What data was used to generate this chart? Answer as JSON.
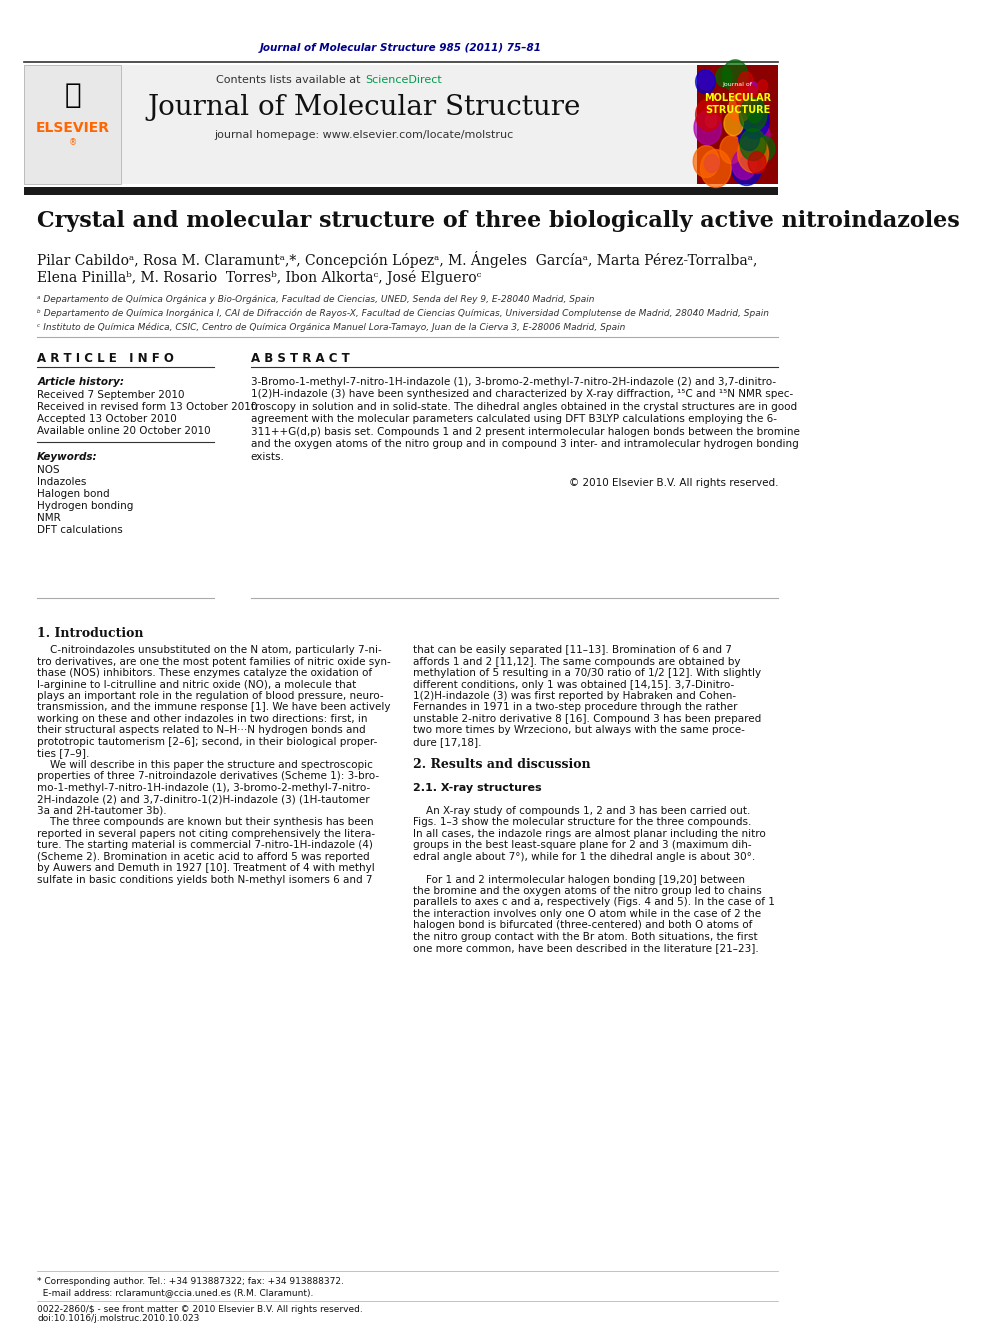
{
  "bg_color": "#ffffff",
  "top_citation": "Journal of Molecular Structure 985 (2011) 75–81",
  "top_citation_color": "#00008B",
  "contents_text": "Contents lists available at ",
  "sciencedirect_text": "ScienceDirect",
  "sciencedirect_color": "#00994C",
  "journal_title": "Journal of Molecular Structure",
  "journal_homepage": "journal homepage: www.elsevier.com/locate/molstruc",
  "thick_bar_color": "#1a1a1a",
  "article_title": "Crystal and molecular structure of three biologically active nitroindazoles",
  "authors_line1": "Pilar Cabildoᵃ, Rosa M. Claramuntᵃ,*, Concepción Lópezᵃ, M. Ángeles  Garcíaᵃ, Marta Pérez-Torralbaᵃ,",
  "authors_line2": "Elena Pinillaᵇ, M. Rosario  Torresᵇ, Ibon Alkortaᶜ, José Elgueroᶜ",
  "affil_a": "ᵃ Departamento de Química Orgánica y Bio-Orgánica, Facultad de Ciencias, UNED, Senda del Rey 9, E-28040 Madrid, Spain",
  "affil_b": "ᵇ Departamento de Química Inorgánica I, CAI de Difracción de Rayos-X, Facultad de Ciencias Químicas, Universidad Complutense de Madrid, 28040 Madrid, Spain",
  "affil_c": "ᶜ Instituto de Química Médica, CSIC, Centro de Química Orgánica Manuel Lora-Tamayo, Juan de la Cierva 3, E-28006 Madrid, Spain",
  "article_info_title": "A R T I C L E   I N F O",
  "abstract_title": "A B S T R A C T",
  "article_history_label": "Article history:",
  "received": "Received 7 September 2010",
  "received_revised": "Received in revised form 13 October 2010",
  "accepted": "Accepted 13 October 2010",
  "available": "Available online 20 October 2010",
  "keywords_label": "Keywords:",
  "keywords": [
    "NOS",
    "Indazoles",
    "Halogen bond",
    "Hydrogen bonding",
    "NMR",
    "DFT calculations"
  ],
  "abstract_text": "3-Bromo-1-methyl-7-nitro-1H-indazole (1), 3-bromo-2-methyl-7-nitro-2H-indazole (2) and 3,7-dinitro-1(2)H-indazole (3) have been synthesized and characterized by X-ray diffraction, ¹⁵C and ¹⁵N NMR spectroscopy in solution and in solid-state. The dihedral angles obtained in the crystal structures are in good agreement with the molecular parameters calculated using DFT B3LYP calculations employing the 6-311++G(d,p) basis set. Compounds 1 and 2 present intermolecular halogen bonds between the bromine and the oxygen atoms of the nitro group and in compound 3 inter- and intramolecular hydrogen bonding exists.",
  "copyright": "© 2010 Elsevier B.V. All rights reserved.",
  "intro_section": "1. Introduction",
  "intro_col1": "C-nitroindazoles unsubstituted on the N atom, particularly 7-nitro derivatives, are one the most potent families of nitric oxide synthase (NOS) inhibitors. These enzymes catalyze the oxidation of l-arginine to l-citrulline and nitric oxide (NO), a molecule that plays an important role in the regulation of blood pressure, neurotransmission, and the immune response [1]. We have been actively working on these and other indazoles in two directions: first, in their structural aspects related to N–H···N hydrogen bonds and prototropic tautomerism [2–6]; second, in their biological properties [7–9].\n\n    We will describe in this paper the structure and spectroscopic properties of three 7-nitroindazole derivatives (Scheme 1): 3-bromo-1-methyl-7-nitro-1H-indazole (1), 3-bromo-2-methyl-7-nitro-2H-indazole (2) and 3,7-dinitro-1(2)H-indazole (3) (1H-tautomer 3a and 2H-tautomer 3b).\n\n    The three compounds are known but their synthesis has been reported in several papers not citing comprehensively the literature. The starting material is commercial 7-nitro-1H-indazole (4) (Scheme 2). Bromination in acetic acid to afford 5 was reported by Auwers and Demuth in 1927 [10]. Treatment of 4 with methyl sulfate in basic conditions yields both N-methyl isomers 6 and 7",
  "intro_col2": "that can be easily separated [11–13]. Bromination of 6 and 7 affords 1 and 2 [11,12]. The same compounds are obtained by methylation of 5 resulting in a 70/30 ratio of 1/2 [12]. With slightly different conditions, only 1 was obtained [14,15]. 3,7-Dinitro-1(2)H-indazole (3) was first reported by Habraken and Cohen-Fernandes in 1971 in a two-step procedure through the rather unstable 2-nitro derivative 8 [16]. Compound 3 has been prepared two more times by Wrzeciono, but always with the same procedure [17,18].\n\n2. Results and discussion\n\n2.1. X-ray structures\n\n    An X-ray study of compounds 1, 2 and 3 has been carried out. Figs. 1–3 show the molecular structure for the three compounds. In all cases, the indazole rings are almost planar including the nitro groups in the best least-square plane for 2 and 3 (maximum dihedral angle about 7°), while for 1 the dihedral angle is about 30°.\n\n    For 1 and 2 intermolecular halogen bonding [19,20] between the bromine and the oxygen atoms of the nitro group led to chains parallels to axes c and a, respectively (Figs. 4 and 5). In the case of 1 the interaction involves only one O atom while in the case of 2 the halogen bond is bifurcated (three-centered) and both O atoms of the nitro group contact with the Br atom. Both situations, the first one more common, have been described in the literature [21–23].",
  "elsevier_color": "#FF6600",
  "header_bg": "#f0f0f0",
  "doi_text": "doi:10.1016/j.molstruc.2010.10.023",
  "open_access_text": "0022-2860/$ - see front matter © 2010 Elsevier B.V. All rights reserved."
}
